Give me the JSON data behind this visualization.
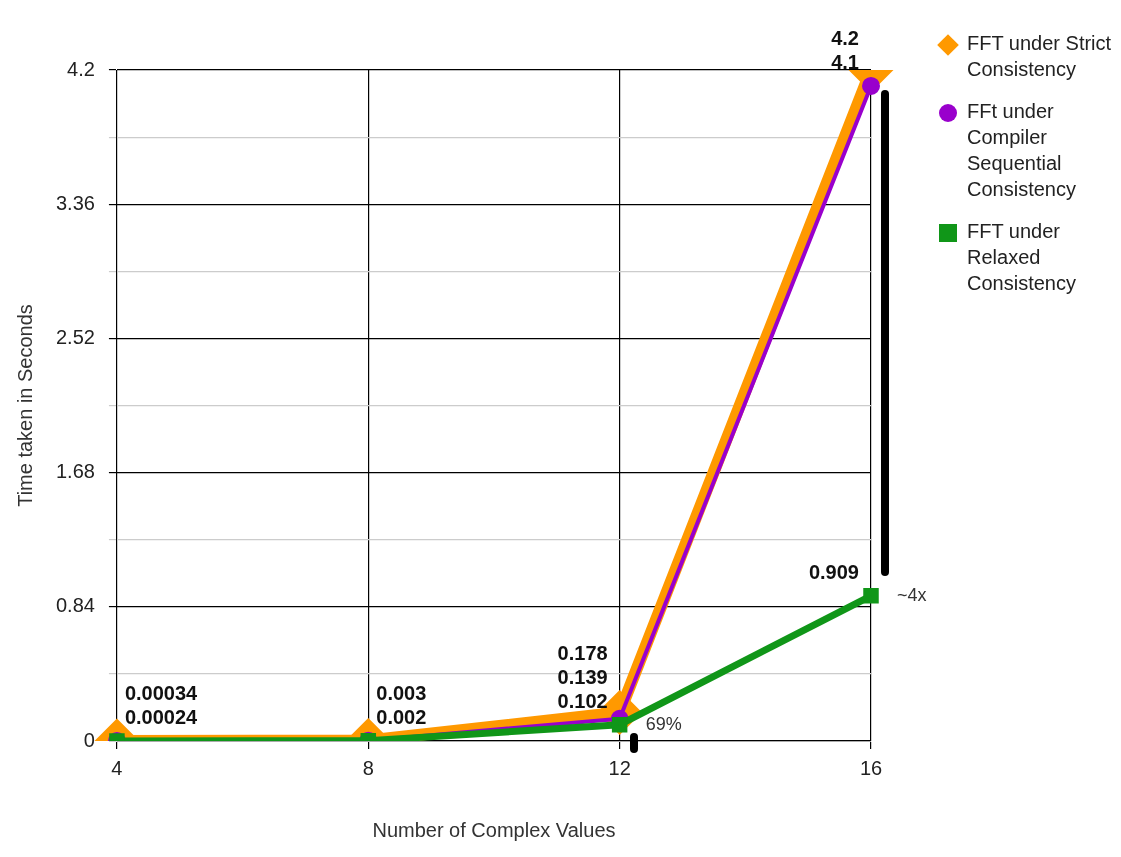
{
  "chart_data": {
    "type": "line",
    "xlabel": "Number of Complex Values",
    "ylabel": "Time taken in Seconds",
    "categories": [
      "4",
      "8",
      "12",
      "16"
    ],
    "series": [
      {
        "name": "FFT under Strict Consistency",
        "color": "#ff9900",
        "marker": "diamond",
        "values": [
          0.00034,
          0.003,
          0.178,
          4.2
        ],
        "value_labels": [
          "0.00034",
          "0.003",
          "0.178",
          "4.2"
        ]
      },
      {
        "name": "FFt under Compiler Sequential Consistency",
        "color": "#9900cc",
        "marker": "circle",
        "values": [
          0.00024,
          0.002,
          0.139,
          4.1
        ],
        "value_labels": [
          "0.00024",
          "0.002",
          "0.139",
          "4.1"
        ]
      },
      {
        "name": "FFT under Relaxed Consistency",
        "color": "#109618",
        "marker": "square",
        "values": [
          0.00024,
          0.002,
          0.102,
          0.909
        ],
        "value_labels": [
          null,
          null,
          "0.102",
          "0.909"
        ]
      }
    ],
    "ylim": [
      0,
      4.2
    ],
    "yticks": [
      0,
      {
        "value": 0.42,
        "label": null
      },
      0.84,
      {
        "value": 1.26,
        "label": null
      },
      1.68,
      {
        "value": 2.1,
        "label": null
      },
      2.52,
      {
        "value": 2.94,
        "label": null
      },
      3.36,
      {
        "value": 3.78,
        "label": null
      },
      4.2
    ],
    "grid": true,
    "legend": "right",
    "annotations": [
      {
        "text": "~4x",
        "x": "16",
        "y": 0.909
      },
      {
        "text": "69%",
        "x": "12",
        "y": 0.102
      }
    ]
  }
}
